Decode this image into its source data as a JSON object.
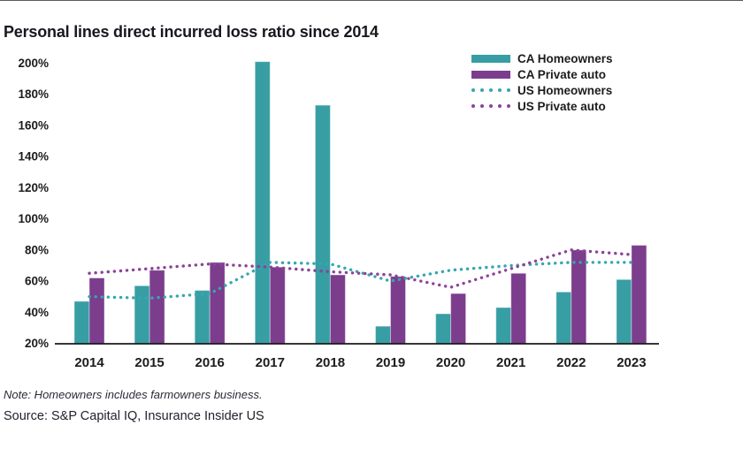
{
  "page": {
    "title": "Personal lines direct incurred loss ratio since 2014",
    "note": "Note: Homeowners includes farmowners business.",
    "source": "Source: S&P Capital IQ, Insurance Insider US"
  },
  "colors": {
    "ca_homeowners": "#379EA4",
    "ca_private_auto": "#7C3D8D",
    "us_homeowners": "#35A7B0",
    "us_private_auto": "#8C4299",
    "axis": "#1a1a1a",
    "label_text": "#1c1c1c"
  },
  "chart_data": {
    "type": "bar",
    "title": "Personal lines direct incurred loss ratio since 2014",
    "categories": [
      "2014",
      "2015",
      "2016",
      "2017",
      "2018",
      "2019",
      "2020",
      "2021",
      "2022",
      "2023"
    ],
    "series": [
      {
        "name": "CA Homeowners",
        "type": "bar",
        "color_key": "ca_homeowners",
        "values": [
          47,
          57,
          54,
          201,
          173,
          31,
          39,
          43,
          53,
          61
        ]
      },
      {
        "name": "CA Private auto",
        "type": "bar",
        "color_key": "ca_private_auto",
        "values": [
          62,
          67,
          72,
          69,
          64,
          63,
          52,
          65,
          80,
          83
        ]
      },
      {
        "name": "US Homeowners",
        "type": "dotted-line",
        "color_key": "us_homeowners",
        "values": [
          50,
          49,
          52,
          72,
          71,
          60,
          67,
          70,
          72,
          72
        ]
      },
      {
        "name": "US Private auto",
        "type": "dotted-line",
        "color_key": "us_private_auto",
        "values": [
          65,
          68,
          71,
          69,
          66,
          64,
          56,
          68,
          80,
          77
        ]
      }
    ],
    "xlabel": "",
    "ylabel": "",
    "y_axis": {
      "min": 20,
      "max": 200,
      "step": 20,
      "unit": "%"
    },
    "ylim": [
      20,
      200
    ],
    "grid": false,
    "legend_position": "top-right"
  }
}
